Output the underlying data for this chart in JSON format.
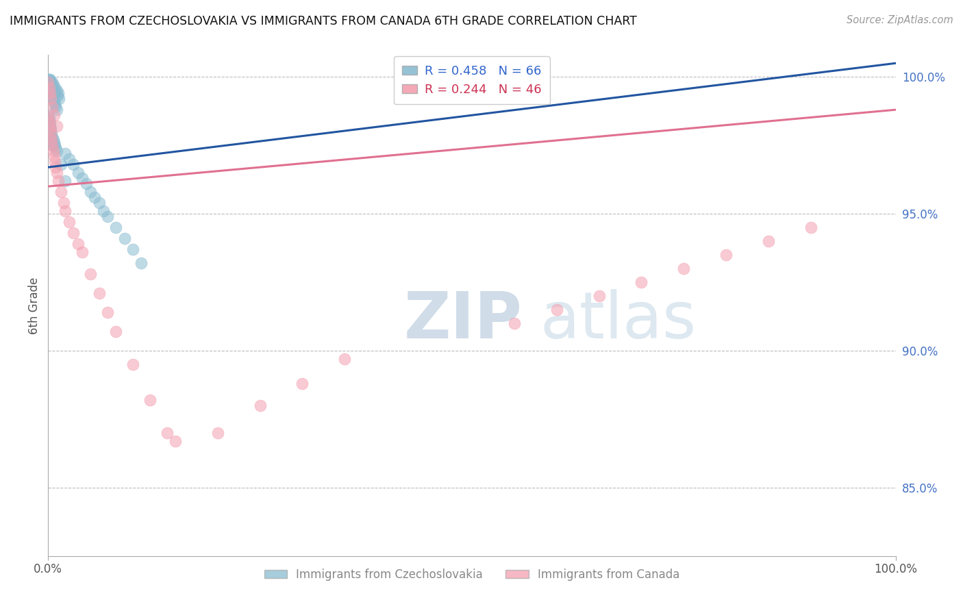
{
  "title": "IMMIGRANTS FROM CZECHOSLOVAKIA VS IMMIGRANTS FROM CANADA 6TH GRADE CORRELATION CHART",
  "source": "Source: ZipAtlas.com",
  "ylabel": "6th Grade",
  "xlim": [
    0.0,
    1.0
  ],
  "ylim": [
    0.825,
    1.008
  ],
  "blue_R": 0.458,
  "blue_N": 66,
  "pink_R": 0.244,
  "pink_N": 46,
  "blue_color": "#8abcd1",
  "pink_color": "#f4a0b0",
  "blue_line_color": "#2255a0",
  "pink_line_color": "#e07090",
  "legend_label_blue": "Immigrants from Czechoslovakia",
  "legend_label_pink": "Immigrants from Canada",
  "right_ytick_vals": [
    1.0,
    0.95,
    0.9,
    0.85
  ],
  "right_ytick_labels": [
    "100.0%",
    "95.0%",
    "90.0%",
    "85.0%"
  ],
  "xtick_vals": [
    0.0,
    1.0
  ],
  "xtick_labels": [
    "0.0%",
    "100.0%"
  ],
  "blue_x": [
    0.0,
    0.0,
    0.0,
    0.001,
    0.001,
    0.002,
    0.002,
    0.003,
    0.003,
    0.004,
    0.005,
    0.005,
    0.006,
    0.007,
    0.008,
    0.009,
    0.01,
    0.011,
    0.012,
    0.013,
    0.001,
    0.002,
    0.003,
    0.004,
    0.005,
    0.006,
    0.007,
    0.008,
    0.009,
    0.01,
    0.001,
    0.002,
    0.003,
    0.004,
    0.005,
    0.02,
    0.025,
    0.03,
    0.035,
    0.04,
    0.045,
    0.05,
    0.055,
    0.06,
    0.065,
    0.07,
    0.08,
    0.09,
    0.1,
    0.11,
    0.0,
    0.001,
    0.001,
    0.002,
    0.002,
    0.003,
    0.003,
    0.004,
    0.005,
    0.006,
    0.007,
    0.008,
    0.009,
    0.01,
    0.015,
    0.02
  ],
  "blue_y": [
    0.999,
    0.998,
    0.997,
    0.999,
    0.998,
    0.999,
    0.997,
    0.998,
    0.996,
    0.997,
    0.998,
    0.996,
    0.997,
    0.995,
    0.996,
    0.994,
    0.995,
    0.993,
    0.994,
    0.992,
    0.997,
    0.996,
    0.995,
    0.994,
    0.993,
    0.992,
    0.991,
    0.99,
    0.989,
    0.988,
    0.979,
    0.978,
    0.977,
    0.976,
    0.975,
    0.972,
    0.97,
    0.968,
    0.965,
    0.963,
    0.961,
    0.958,
    0.956,
    0.954,
    0.951,
    0.949,
    0.945,
    0.941,
    0.937,
    0.932,
    0.986,
    0.985,
    0.984,
    0.983,
    0.982,
    0.981,
    0.98,
    0.979,
    0.978,
    0.977,
    0.976,
    0.975,
    0.974,
    0.973,
    0.968,
    0.962
  ],
  "pink_x": [
    0.0,
    0.001,
    0.002,
    0.003,
    0.004,
    0.005,
    0.006,
    0.007,
    0.008,
    0.009,
    0.01,
    0.012,
    0.015,
    0.018,
    0.02,
    0.025,
    0.03,
    0.035,
    0.04,
    0.05,
    0.06,
    0.07,
    0.08,
    0.1,
    0.12,
    0.14,
    0.0,
    0.001,
    0.002,
    0.003,
    0.005,
    0.007,
    0.01,
    0.15,
    0.2,
    0.25,
    0.3,
    0.35,
    0.55,
    0.6,
    0.65,
    0.7,
    0.75,
    0.8,
    0.85,
    0.9
  ],
  "pink_y": [
    0.985,
    0.983,
    0.981,
    0.979,
    0.977,
    0.975,
    0.973,
    0.971,
    0.969,
    0.967,
    0.965,
    0.962,
    0.958,
    0.954,
    0.951,
    0.947,
    0.943,
    0.939,
    0.936,
    0.928,
    0.921,
    0.914,
    0.907,
    0.895,
    0.882,
    0.87,
    0.998,
    0.996,
    0.994,
    0.992,
    0.989,
    0.986,
    0.982,
    0.867,
    0.87,
    0.88,
    0.888,
    0.897,
    0.91,
    0.915,
    0.92,
    0.925,
    0.93,
    0.935,
    0.94,
    0.945
  ],
  "watermark_zip": "ZIP",
  "watermark_atlas": "atlas"
}
